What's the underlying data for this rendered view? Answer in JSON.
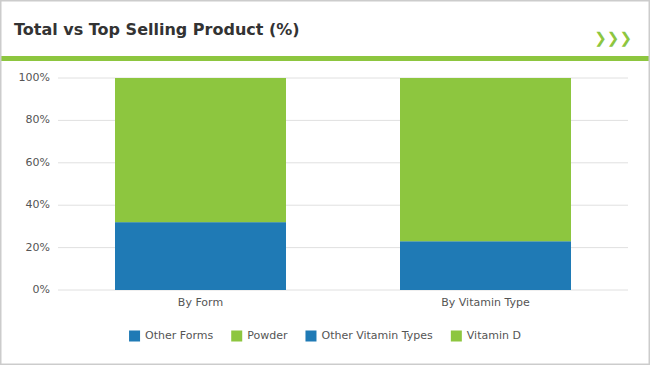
{
  "chart_data": {
    "type": "bar",
    "stacked": true,
    "title": "Total vs Top Selling Product (%)",
    "annotations": [
      "❯❯❯"
    ],
    "categories": [
      "By Form",
      "By Vitamin Type"
    ],
    "series": [
      {
        "name": "Other Forms",
        "color": "#1f7ab5",
        "values": [
          32,
          null
        ]
      },
      {
        "name": "Powder",
        "color": "#8dc63f",
        "values": [
          68,
          null
        ]
      },
      {
        "name": "Other Vitamin Types",
        "color": "#1f7ab5",
        "values": [
          null,
          23
        ]
      },
      {
        "name": "Vitamin D",
        "color": "#8dc63f",
        "values": [
          null,
          77
        ]
      }
    ],
    "ylim": [
      0,
      100
    ],
    "yticks": [
      {
        "value": 0,
        "label": "0%"
      },
      {
        "value": 20,
        "label": "20%"
      },
      {
        "value": 40,
        "label": "40%"
      },
      {
        "value": 60,
        "label": "60%"
      },
      {
        "value": 80,
        "label": "80%"
      },
      {
        "value": 100,
        "label": "100%"
      }
    ],
    "grid": true,
    "legend": "bottom"
  }
}
